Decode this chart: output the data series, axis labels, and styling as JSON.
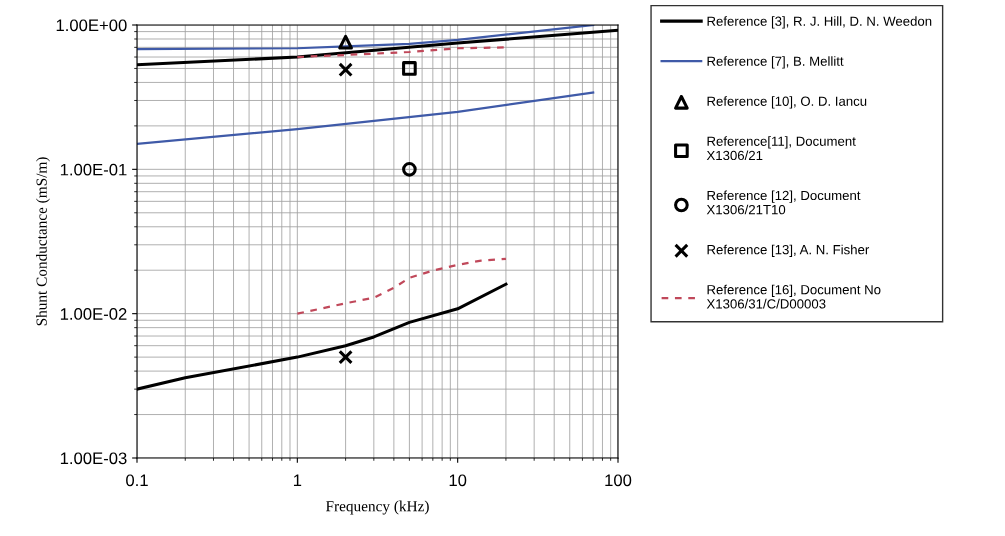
{
  "chart_data": {
    "type": "line",
    "xlabel": "Frequency (kHz)",
    "ylabel": "Shunt Conductance (mS/m)",
    "log": "xy",
    "grid": true,
    "legend": "right",
    "xlim": [
      0.1,
      100
    ],
    "xticks": [
      0.1,
      1,
      10,
      100
    ],
    "ylim": [
      0.001,
      1
    ],
    "yticks": [
      {
        "value": 0.001,
        "label": "1.00E-03"
      },
      {
        "value": 0.01,
        "label": "1.00E-02"
      },
      {
        "value": 0.1,
        "label": "1.00E-01"
      },
      {
        "value": 1,
        "label": "1.00E+00"
      }
    ],
    "series": [
      {
        "name": "Reference [3], R. J. Hill, D. N. Weedon",
        "color": "#000000",
        "line_style": "solid",
        "marker": "none",
        "x": [
          0.1,
          1,
          10,
          100
        ],
        "values": [
          0.53,
          0.6,
          0.75,
          0.92
        ]
      },
      {
        "color": "#000000",
        "line_style": "solid",
        "marker": "none",
        "x": [
          0.1,
          0.2,
          1,
          2,
          3,
          5,
          10,
          20
        ],
        "values": [
          0.003,
          0.0036,
          0.005,
          0.006,
          0.0069,
          0.0087,
          0.0108,
          0.016
        ]
      },
      {
        "name": "Reference [7], B. Mellitt",
        "color": "#3f5aa8",
        "line_style": "solid",
        "marker": "none",
        "x": [
          0.1,
          1,
          2,
          5,
          10,
          70
        ],
        "values": [
          0.68,
          0.69,
          0.71,
          0.74,
          0.79,
          1.0
        ]
      },
      {
        "color": "#3f5aa8",
        "line_style": "solid",
        "marker": "none",
        "x": [
          0.1,
          1,
          10,
          70
        ],
        "values": [
          0.15,
          0.19,
          0.25,
          0.34
        ]
      },
      {
        "name": "Reference [10], O. D. Iancu",
        "type": "scatter",
        "color": "#000000",
        "marker": "triangle",
        "x": [
          2
        ],
        "values": [
          0.76
        ]
      },
      {
        "name": "Reference[11], Document\nX1306/21",
        "type": "scatter",
        "color": "#000000",
        "marker": "square",
        "x": [
          5
        ],
        "values": [
          0.5
        ]
      },
      {
        "name": "Reference [12], Document\nX1306/21T10",
        "type": "scatter",
        "color": "#000000",
        "marker": "circle",
        "x": [
          5
        ],
        "values": [
          0.1
        ]
      },
      {
        "name": "Reference [13], A. N. Fisher",
        "type": "scatter",
        "color": "#000000",
        "marker": "cross",
        "x": [
          2,
          2
        ],
        "values": [
          0.49,
          0.005
        ]
      },
      {
        "name": "Reference [16], Document No\nX1306/31/C/D00003",
        "color": "#c0485a",
        "line_style": "dashed",
        "marker": "none",
        "x": [
          1,
          2,
          5,
          10,
          20
        ],
        "values": [
          0.6,
          0.62,
          0.65,
          0.69,
          0.7
        ]
      },
      {
        "color": "#c0485a",
        "line_style": "dashed",
        "marker": "none",
        "x": [
          1,
          2,
          3,
          4,
          5,
          7,
          10,
          14,
          20
        ],
        "values": [
          0.01,
          0.0118,
          0.0129,
          0.0151,
          0.0177,
          0.0199,
          0.0218,
          0.0233,
          0.024
        ]
      }
    ]
  }
}
